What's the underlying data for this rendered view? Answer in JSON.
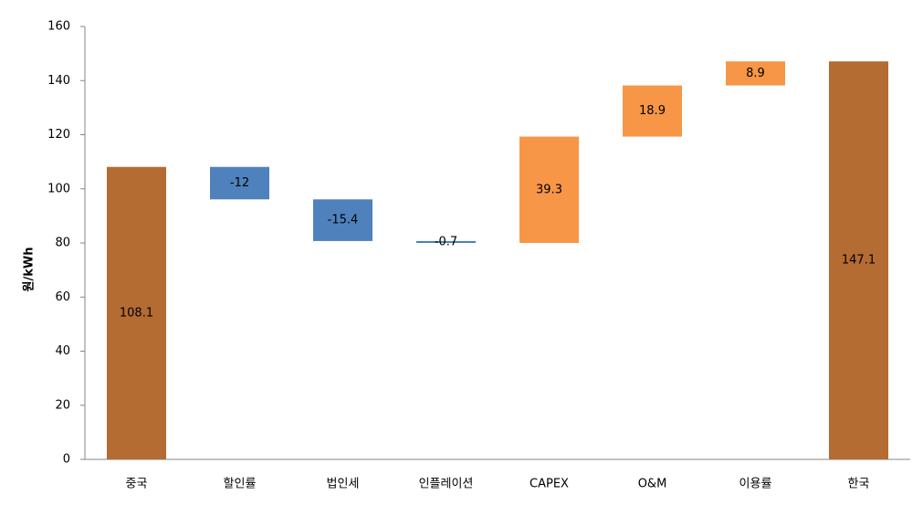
{
  "chart_data": {
    "type": "waterfall",
    "y_label": "원/kWh",
    "categories": [
      "중국",
      "할인률",
      "법인세",
      "인플레이션",
      "CAPEX",
      "O&M",
      "이용률",
      "한국"
    ],
    "values": [
      108.1,
      -12,
      -15.4,
      -0.7,
      39.3,
      18.9,
      8.9,
      147.1
    ],
    "colors": [
      "#b46c32",
      "#4f81bd",
      "#4f81bd",
      "#4f81bd",
      "#f79646",
      "#f79646",
      "#f79646",
      "#b46c32"
    ],
    "ylim": [
      0,
      160
    ],
    "yticks": [
      0,
      20,
      40,
      60,
      80,
      100,
      120,
      140,
      160
    ],
    "grid": false
  }
}
